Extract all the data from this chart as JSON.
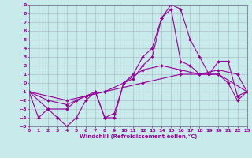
{
  "xlabel": "Windchill (Refroidissement éolien,°C)",
  "bg_color": "#c8eaea",
  "line_color": "#990099",
  "grid_color": "#99aabb",
  "xlim": [
    0,
    23
  ],
  "ylim": [
    -5,
    9
  ],
  "xticks": [
    0,
    1,
    2,
    3,
    4,
    5,
    6,
    7,
    8,
    9,
    10,
    11,
    12,
    13,
    14,
    15,
    16,
    17,
    18,
    19,
    20,
    21,
    22,
    23
  ],
  "yticks": [
    -5,
    -4,
    -3,
    -2,
    -1,
    0,
    1,
    2,
    3,
    4,
    5,
    6,
    7,
    8,
    9
  ],
  "series": [
    {
      "x": [
        0,
        1,
        2,
        3,
        4,
        5,
        6,
        7,
        8,
        9,
        10,
        11,
        12,
        13,
        14,
        15,
        16,
        17,
        18,
        19,
        20,
        21,
        22,
        23
      ],
      "y": [
        -1,
        -4,
        -3,
        -4,
        -5,
        -4,
        -2,
        -1,
        -4,
        -4,
        0,
        1,
        3,
        4,
        7.5,
        9,
        8.5,
        5,
        3,
        1,
        1,
        0,
        -2,
        -1
      ]
    },
    {
      "x": [
        0,
        2,
        4,
        5,
        6,
        7,
        8,
        9,
        10,
        11,
        12,
        13,
        14,
        15,
        16,
        17,
        18,
        19,
        20,
        21,
        22,
        23
      ],
      "y": [
        -1,
        -3,
        -3,
        -2,
        -1.5,
        -1,
        -4,
        -3.5,
        0,
        0.5,
        2,
        3,
        7.5,
        8.5,
        2.5,
        2,
        1,
        1,
        2.5,
        2.5,
        -1.5,
        -1
      ]
    },
    {
      "x": [
        0,
        2,
        4,
        6,
        8,
        10,
        12,
        14,
        16,
        18,
        20,
        22,
        23
      ],
      "y": [
        -1,
        -2,
        -2.5,
        -1.5,
        -1,
        0,
        1.5,
        2,
        1.5,
        1,
        1.5,
        1,
        -1
      ]
    },
    {
      "x": [
        0,
        4,
        8,
        12,
        16,
        20,
        23
      ],
      "y": [
        -1,
        -2,
        -1,
        0,
        1,
        1,
        -1
      ]
    }
  ]
}
